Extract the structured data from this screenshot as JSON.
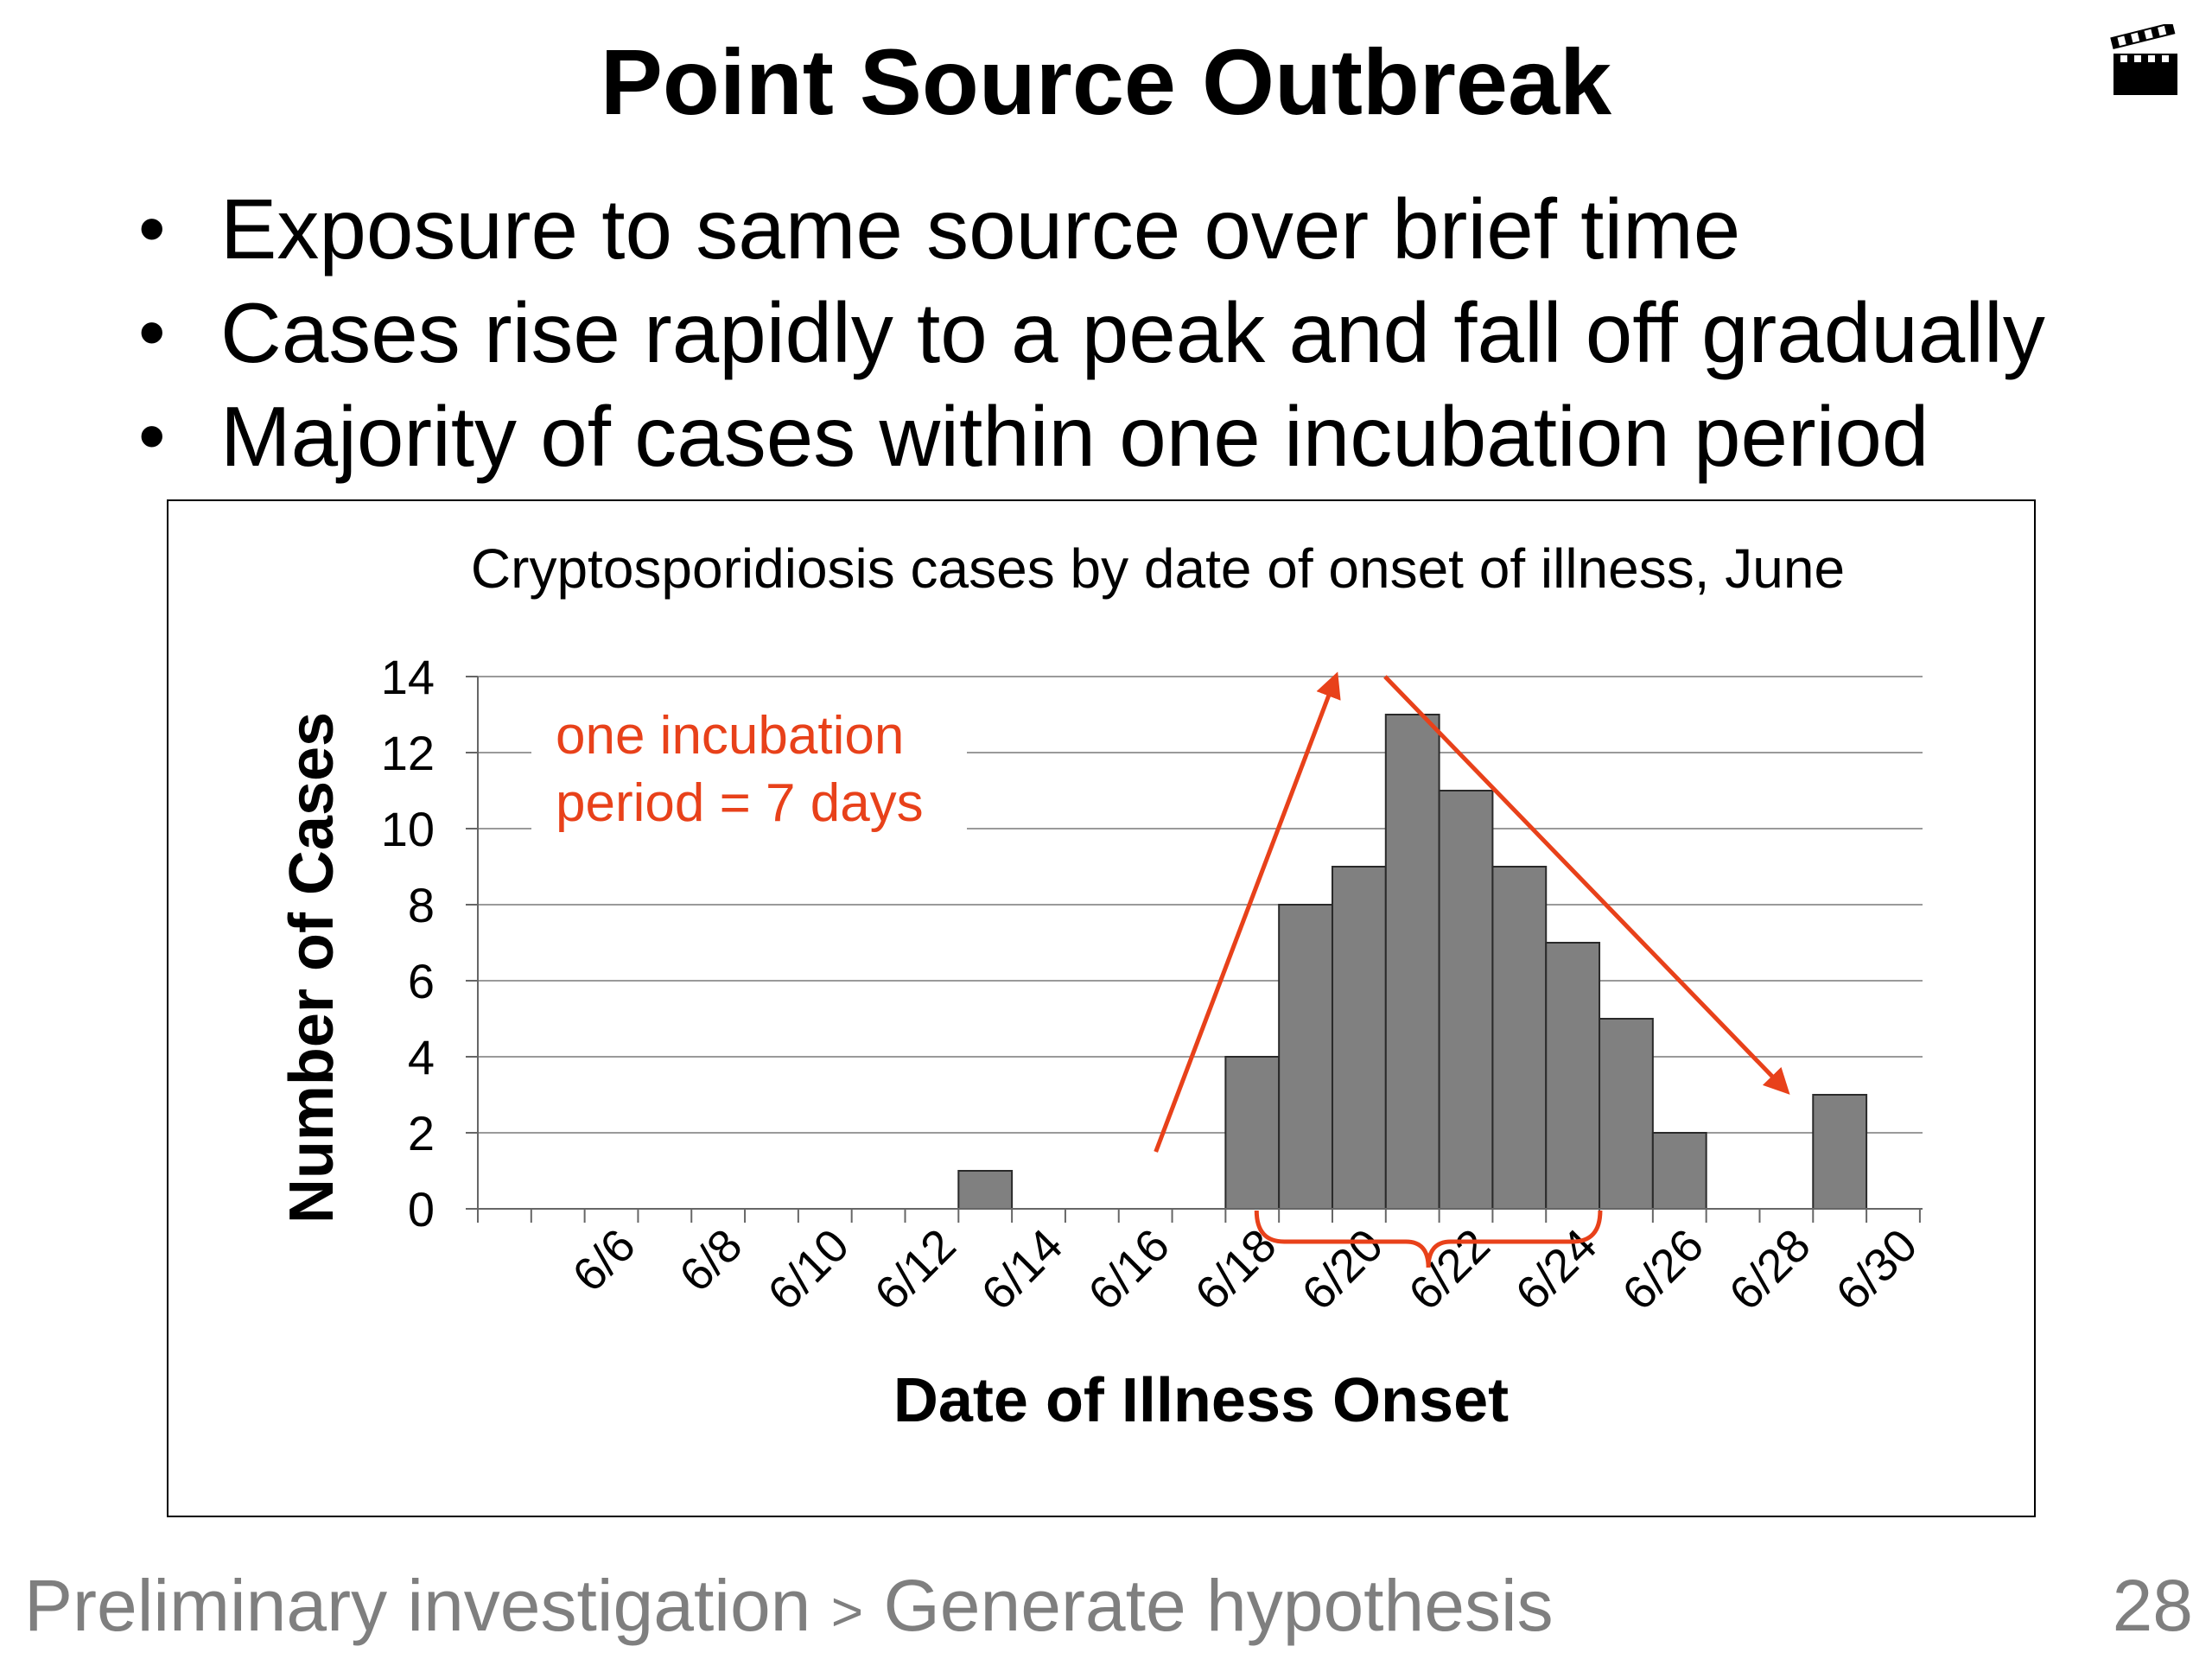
{
  "slide": {
    "title": "Point Source Outbreak",
    "bullets": [
      "Exposure to same source over brief time",
      "Cases rise rapidly to a peak and fall off gradually",
      "Majority of cases within one incubation period"
    ],
    "bullet_glyph": "•",
    "icon": "movie-clapperboard-icon",
    "footer_left": "Preliminary investigation",
    "footer_sep": ">",
    "footer_right": "Generate hypothesis",
    "page_number": "28"
  },
  "chart_data": {
    "type": "bar",
    "title": "Cryptosporidiosis cases by date of onset of illness, June",
    "xlabel": "Date of Illness Onset",
    "ylabel": "Number of Cases",
    "ylim": [
      0,
      14
    ],
    "yticks": [
      0,
      2,
      4,
      6,
      8,
      10,
      12,
      14
    ],
    "categories": [
      "6/4",
      "6/5",
      "6/6",
      "6/7",
      "6/8",
      "6/9",
      "6/10",
      "6/11",
      "6/12",
      "6/13",
      "6/14",
      "6/15",
      "6/16",
      "6/17",
      "6/18",
      "6/19",
      "6/20",
      "6/21",
      "6/22",
      "6/23",
      "6/24",
      "6/25",
      "6/26",
      "6/27",
      "6/28",
      "6/29",
      "6/30"
    ],
    "values": [
      0,
      0,
      0,
      0,
      0,
      0,
      0,
      0,
      0,
      1,
      0,
      0,
      0,
      0,
      4,
      8,
      9,
      13,
      11,
      9,
      7,
      5,
      2,
      0,
      0,
      3,
      0
    ],
    "xtick_labels": [
      "6/6",
      "6/8",
      "6/10",
      "6/12",
      "6/14",
      "6/16",
      "6/18",
      "6/20",
      "6/22",
      "6/24",
      "6/26",
      "6/28",
      "6/30"
    ],
    "grid": true,
    "bar_color": "#808080",
    "annotation": {
      "text_line1": "one incubation",
      "text_line2": "period = 7 days",
      "color": "#e8411a"
    }
  }
}
